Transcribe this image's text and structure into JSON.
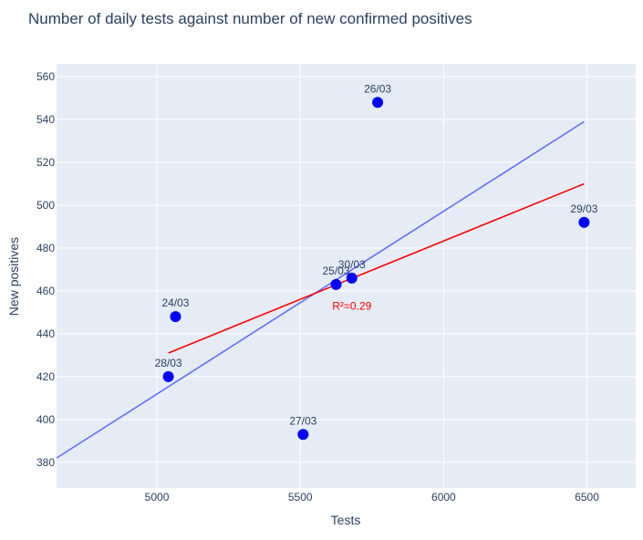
{
  "chart_data": {
    "type": "scatter",
    "title": "Number of daily tests against number of new confirmed positives",
    "xlabel": "Tests",
    "ylabel": "New positives",
    "xlim": [
      4650,
      6670
    ],
    "ylim": [
      368,
      566
    ],
    "x_ticks": [
      5000,
      5500,
      6000,
      6500
    ],
    "y_ticks": [
      380,
      400,
      420,
      440,
      460,
      480,
      500,
      520,
      540,
      560
    ],
    "grid": true,
    "legend": "none",
    "points": [
      {
        "label": "24/03",
        "x": 5065,
        "y": 448
      },
      {
        "label": "25/03",
        "x": 5625,
        "y": 463
      },
      {
        "label": "26/03",
        "x": 5770,
        "y": 548
      },
      {
        "label": "27/03",
        "x": 5510,
        "y": 393
      },
      {
        "label": "28/03",
        "x": 5040,
        "y": 420
      },
      {
        "label": "29/03",
        "x": 6490,
        "y": 492
      },
      {
        "label": "30/03",
        "x": 5680,
        "y": 466
      }
    ],
    "lines": [
      {
        "x": [
          4650,
          6490
        ],
        "y": [
          382,
          539
        ],
        "color": "#636efa"
      },
      {
        "x": [
          5040,
          6490
        ],
        "y": [
          431,
          510
        ],
        "color": "#ff0000"
      }
    ],
    "annotation": {
      "text": "R²=0.29",
      "x": 5680,
      "y": 453,
      "color": "#ff0000"
    },
    "colors": {
      "points": "#0000ff",
      "plot_bg": "#e5ecf6",
      "grid": "#ffffff",
      "text": "#2a3f5f"
    }
  }
}
